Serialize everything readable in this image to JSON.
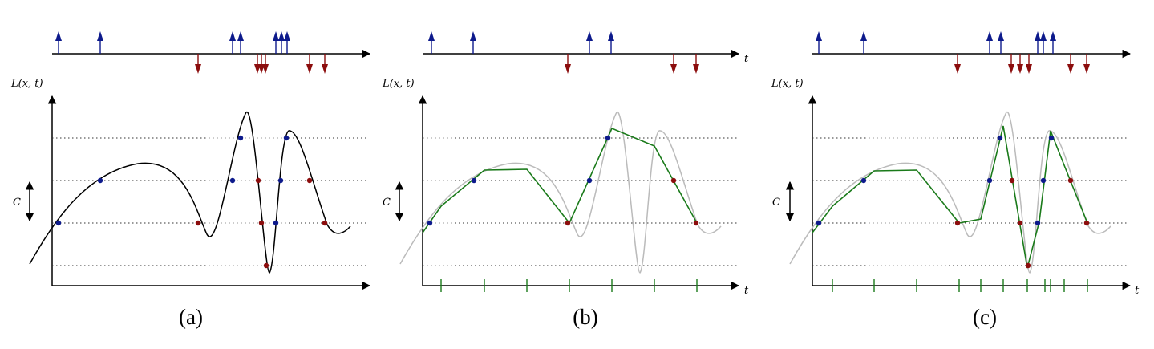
{
  "panels": [
    {
      "id": "a",
      "caption": "(a)",
      "ylabel": "L(x, t)",
      "threshold_label": "C",
      "t_label": ""
    },
    {
      "id": "b",
      "caption": "(b)",
      "ylabel": "L(x, t)",
      "threshold_label": "C",
      "t_label": "t"
    },
    {
      "id": "c",
      "caption": "(c)",
      "ylabel": "L(x, t)",
      "threshold_label": "C",
      "t_label": "t"
    }
  ],
  "colors": {
    "on_event": "#0d1a8c",
    "off_event": "#8c0d0d",
    "signal": "#000000",
    "reference_signal": "#bbbbbb",
    "reconstruction": "#1a7a1a",
    "samples": "#1a7a1a",
    "threshold_lines": "#333333"
  }
}
